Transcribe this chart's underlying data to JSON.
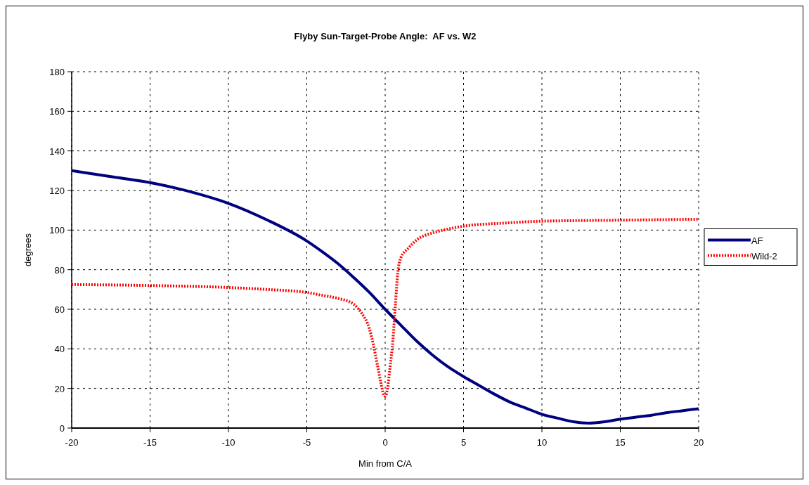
{
  "chart_data": {
    "type": "line",
    "title": "Flyby Sun-Target-Probe Angle:  AF vs. W2",
    "xlabel": "Min from C/A",
    "ylabel": "degrees",
    "xlim": [
      -20,
      20
    ],
    "xticks": [
      -20,
      -15,
      -10,
      -5,
      0,
      5,
      10,
      15,
      20
    ],
    "ylim": [
      0,
      180
    ],
    "yticks": [
      0,
      20,
      40,
      60,
      80,
      100,
      120,
      140,
      160,
      180
    ],
    "grid": true,
    "legend": "right",
    "series": [
      {
        "name": "AF",
        "color": "#000080",
        "line_style": "solid",
        "x": [
          -20,
          -17.5,
          -15,
          -12.5,
          -10,
          -7.5,
          -5,
          -4,
          -3,
          -2,
          -1,
          0,
          1,
          2,
          3,
          4,
          5,
          6,
          7,
          8,
          9,
          10,
          11,
          12,
          13,
          14,
          15,
          16,
          17,
          18,
          19,
          20
        ],
        "values": [
          130,
          127,
          124,
          119.5,
          113.5,
          105,
          94.5,
          89,
          83,
          76,
          68.5,
          60,
          52,
          44,
          37,
          31,
          26,
          21.5,
          17,
          13,
          10,
          7,
          5,
          3.2,
          2.5,
          3.2,
          4.5,
          5.5,
          6.5,
          7.8,
          8.8,
          9.8
        ]
      },
      {
        "name": "Wild-2",
        "color": "#ff0000",
        "line_style": "dotted",
        "x": [
          -20,
          -15,
          -10,
          -7.5,
          -5,
          -4,
          -3,
          -2,
          -1.5,
          -1,
          -0.75,
          -0.5,
          -0.25,
          -0.1,
          0,
          0.15,
          0.3,
          0.5,
          0.65,
          0.8,
          1,
          1.5,
          2,
          3,
          4,
          5,
          7.5,
          10,
          15,
          20
        ],
        "values": [
          72.5,
          72,
          71,
          70,
          68.5,
          67,
          65.5,
          62.5,
          58,
          50,
          42,
          32,
          22,
          17,
          16,
          20,
          30,
          45,
          62,
          78,
          86,
          91,
          95,
          98.5,
          100.5,
          102,
          103.5,
          104.5,
          105,
          105.5
        ]
      }
    ]
  }
}
